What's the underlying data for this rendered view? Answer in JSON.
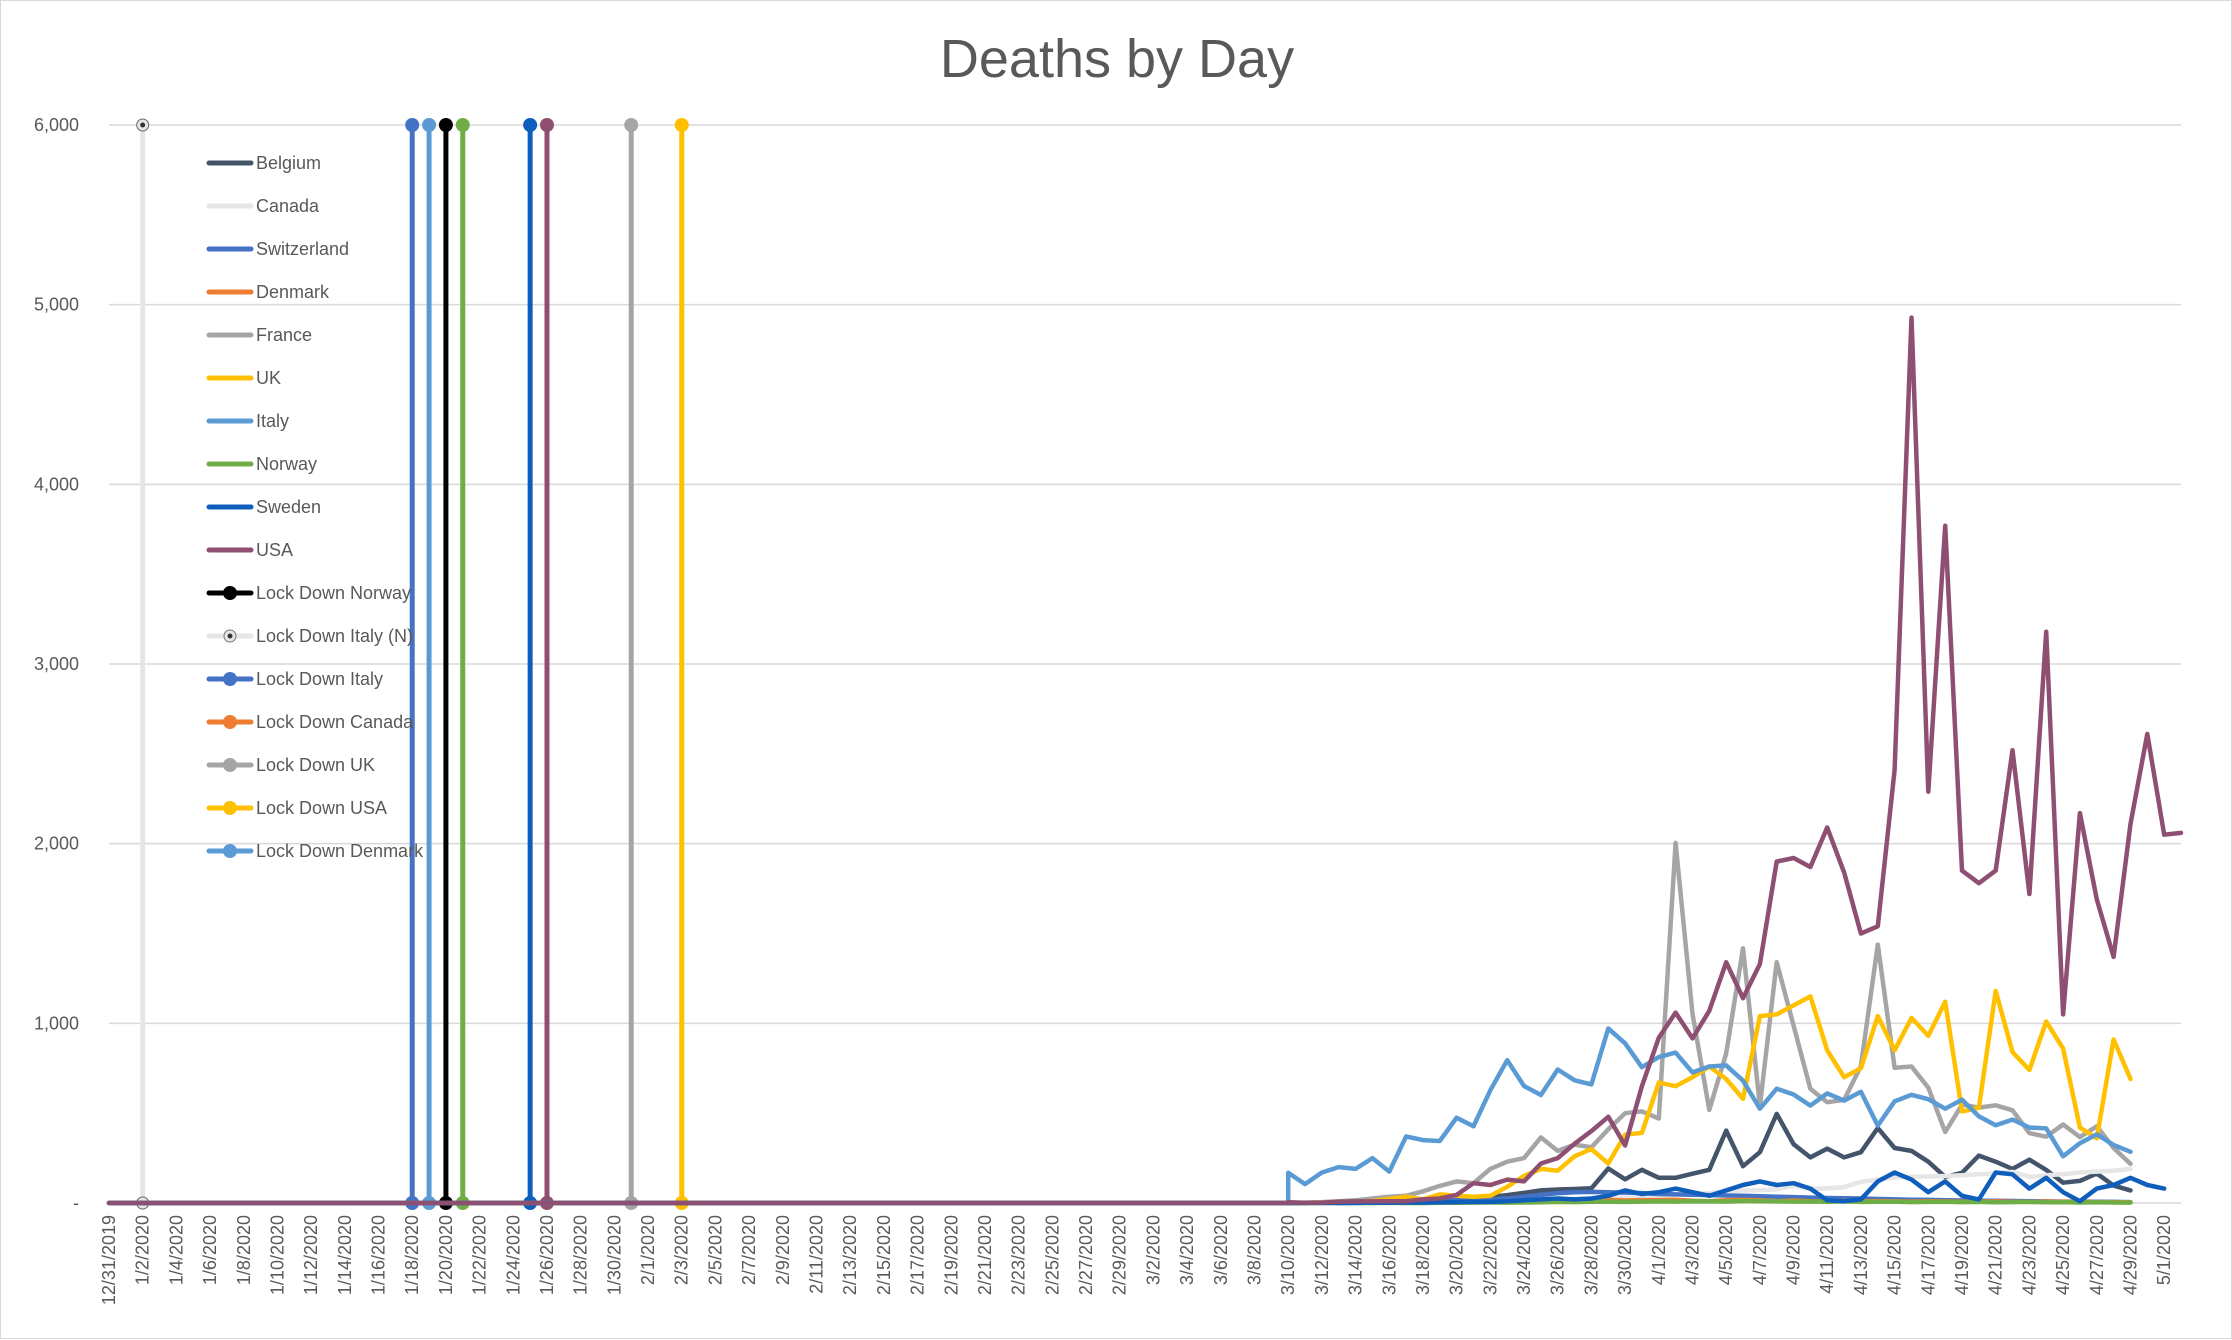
{
  "chart_data": {
    "type": "line",
    "title": "Deaths by Day",
    "xlabel": "",
    "ylabel": "",
    "ylim": [
      0,
      6000
    ],
    "y_ticks": [
      0,
      1000,
      2000,
      3000,
      4000,
      5000,
      6000
    ],
    "y_tick_labels": [
      "-",
      "1,000",
      "2,000",
      "3,000",
      "4,000",
      "5,000",
      "6,000"
    ],
    "x_start": "2019-12-31",
    "x_end": "2020-05-02",
    "x_tick_labels": [
      "12/31/2019",
      "1/2/2020",
      "1/4/2020",
      "1/6/2020",
      "1/8/2020",
      "1/10/2020",
      "1/12/2020",
      "1/14/2020",
      "1/16/2020",
      "1/18/2020",
      "1/20/2020",
      "1/22/2020",
      "1/24/2020",
      "1/26/2020",
      "1/28/2020",
      "1/30/2020",
      "2/1/2020",
      "2/3/2020",
      "2/5/2020",
      "2/7/2020",
      "2/9/2020",
      "2/11/2020",
      "2/13/2020",
      "2/15/2020",
      "2/17/2020",
      "2/19/2020",
      "2/21/2020",
      "2/23/2020",
      "2/25/2020",
      "2/27/2020",
      "2/29/2020",
      "3/2/2020",
      "3/4/2020",
      "3/6/2020",
      "3/8/2020",
      "3/10/2020",
      "3/12/2020",
      "3/14/2020",
      "3/16/2020",
      "3/18/2020",
      "3/20/2020",
      "3/22/2020",
      "3/24/2020",
      "3/26/2020",
      "3/28/2020",
      "3/30/2020",
      "4/1/2020",
      "4/3/2020",
      "4/5/2020",
      "4/7/2020",
      "4/9/2020",
      "4/11/2020",
      "4/13/2020",
      "4/15/2020",
      "4/17/2020",
      "4/19/2020",
      "4/21/2020",
      "4/23/2020",
      "4/25/2020",
      "4/27/2020",
      "4/29/2020",
      "5/1/2020"
    ],
    "gridlines": true,
    "legend_position": "upper-left",
    "series": [
      {
        "name": "Belgium",
        "color": "#44546a",
        "start": "2020-03-10",
        "values": [
          0,
          0,
          0,
          2,
          1,
          5,
          4,
          6,
          5,
          10,
          14,
          21,
          34,
          44,
          56,
          70,
          75,
          78,
          82,
          192,
          132,
          185,
          140,
          140,
          163,
          185,
          403,
          205,
          283,
          496,
          327,
          254,
          303,
          254,
          283,
          417,
          306,
          290,
          230,
          145,
          168,
          264,
          230,
          190,
          241,
          184,
          113,
          123,
          164,
          97,
          70
        ]
      },
      {
        "name": "Canada",
        "color": "#e7e6e6",
        "start": "2020-03-10",
        "values": [
          0,
          0,
          0,
          0,
          0,
          1,
          1,
          1,
          2,
          3,
          4,
          5,
          5,
          8,
          10,
          12,
          18,
          23,
          23,
          29,
          30,
          28,
          40,
          47,
          52,
          55,
          65,
          70,
          71,
          77,
          95,
          78,
          82,
          88,
          118,
          130,
          142,
          145,
          148,
          150,
          155,
          160,
          165,
          173,
          145,
          155,
          160,
          170,
          175,
          180,
          190
        ]
      },
      {
        "name": "Switzerland",
        "color": "#4472c4",
        "start": "2020-03-10",
        "values": [
          1,
          1,
          2,
          3,
          4,
          5,
          6,
          7,
          10,
          12,
          15,
          17,
          20,
          25,
          35,
          45,
          55,
          60,
          62,
          60,
          58,
          55,
          50,
          48,
          46,
          44,
          42,
          40,
          38,
          35,
          33,
          30,
          28,
          26,
          25,
          22,
          20,
          18,
          17,
          15,
          14,
          13,
          12,
          11,
          10,
          9,
          8,
          8,
          7,
          6,
          5
        ]
      },
      {
        "name": "Denmark",
        "color": "#ed7d31",
        "start": "2020-03-10",
        "values": [
          0,
          0,
          1,
          1,
          1,
          2,
          1,
          2,
          2,
          3,
          4,
          3,
          6,
          7,
          8,
          13,
          10,
          12,
          15,
          17,
          14,
          16,
          16,
          18,
          13,
          10,
          15,
          17,
          15,
          10,
          14,
          10,
          8,
          12,
          9,
          11,
          10,
          8,
          10,
          9,
          7,
          8,
          9,
          7,
          6,
          8,
          7,
          6,
          5,
          4,
          4
        ]
      },
      {
        "name": "France",
        "color": "#a5a5a5",
        "start": "2020-03-10",
        "values": [
          0,
          2,
          5,
          10,
          15,
          25,
          35,
          40,
          65,
          95,
          120,
          110,
          190,
          230,
          250,
          365,
          290,
          325,
          310,
          410,
          500,
          510,
          470,
          2004,
          1053,
          518,
          833,
          1417,
          541,
          1341,
          987,
          635,
          561,
          574,
          762,
          1438,
          753,
          760,
          642,
          395,
          547,
          531,
          544,
          516,
          389,
          369,
          437,
          367,
          427,
          306,
          218
        ]
      },
      {
        "name": "UK",
        "color": "#ffc000",
        "start": "2020-03-10",
        "values": [
          0,
          1,
          3,
          2,
          6,
          11,
          22,
          35,
          20,
          48,
          40,
          35,
          40,
          90,
          150,
          190,
          180,
          260,
          300,
          220,
          380,
          390,
          670,
          650,
          700,
          760,
          690,
          580,
          1040,
          1050,
          1100,
          1150,
          850,
          700,
          750,
          1040,
          850,
          1030,
          930,
          1120,
          510,
          530,
          1180,
          840,
          740,
          1010,
          860,
          420,
          360,
          910,
          690
        ]
      },
      {
        "name": "Italy",
        "color": "#5b9bd5",
        "start": "2020-03-10",
        "values": [
          168,
          105,
          170,
          200,
          190,
          250,
          175,
          370,
          350,
          345,
          475,
          427,
          627,
          795,
          651,
          601,
          743,
          683,
          660,
          971,
          889,
          756,
          812,
          837,
          727,
          760,
          766,
          681,
          525,
          636,
          604,
          542,
          610,
          570,
          619,
          431,
          566,
          602,
          578,
          525,
          575,
          482,
          433,
          464,
          420,
          415,
          260,
          333,
          382,
          323,
          285
        ]
      },
      {
        "name": "Norway",
        "color": "#70ad47",
        "start": "2020-03-10",
        "values": [
          0,
          0,
          0,
          0,
          1,
          0,
          1,
          0,
          0,
          1,
          1,
          2,
          3,
          2,
          3,
          4,
          6,
          5,
          7,
          7,
          6,
          8,
          9,
          8,
          10,
          9,
          8,
          11,
          10,
          9,
          8,
          8,
          7,
          9,
          6,
          7,
          8,
          5,
          6,
          7,
          5,
          6,
          4,
          5,
          6,
          4,
          5,
          3,
          4,
          3,
          2
        ]
      },
      {
        "name": "Sweden",
        "color": "#0f5ebc",
        "start": "2020-03-10",
        "values": [
          0,
          0,
          1,
          0,
          0,
          2,
          1,
          3,
          2,
          4,
          5,
          7,
          6,
          10,
          15,
          20,
          25,
          20,
          25,
          40,
          70,
          50,
          60,
          80,
          60,
          40,
          70,
          100,
          120,
          100,
          110,
          80,
          15,
          10,
          20,
          120,
          170,
          130,
          60,
          120,
          40,
          20,
          170,
          160,
          80,
          140,
          60,
          10,
          80,
          100,
          140,
          100,
          80
        ]
      },
      {
        "name": "USA",
        "color": "#8e4f73",
        "start": "2020-03-10",
        "values": [
          4,
          1,
          2,
          7,
          9,
          9,
          10,
          10,
          20,
          25,
          45,
          110,
          100,
          130,
          120,
          220,
          250,
          330,
          400,
          480,
          320,
          650,
          920,
          1060,
          916,
          1070,
          1340,
          1140,
          1330,
          1900,
          1920,
          1870,
          2090,
          1840,
          1500,
          1540,
          2410,
          4928,
          2290,
          3770,
          1850,
          1780,
          1850,
          2520,
          1720,
          3180,
          1050,
          2170,
          1690,
          1370,
          2110,
          2611,
          2050,
          2060
        ]
      }
    ],
    "lockdowns": [
      {
        "name": "Lock Down Norway",
        "date": "2020-01-20",
        "color": "#000000"
      },
      {
        "name": "Lock Down Italy (N)",
        "date": "2020-01-02",
        "color": "#e7e6e6"
      },
      {
        "name": "Lock Down Italy",
        "date": "2020-01-18",
        "color": "#4472c4"
      },
      {
        "name": "Lock Down Canada",
        "date": null,
        "color": "#ed7d31"
      },
      {
        "name": "Lock Down UK",
        "date": "2020-01-31",
        "color": "#a5a5a5"
      },
      {
        "name": "Lock Down USA",
        "date": "2020-02-03",
        "color": "#ffc000"
      },
      {
        "name": "Lock Down Denmark",
        "date": "2020-01-19",
        "color": "#5b9bd5"
      }
    ],
    "unlabeled_vertical_lines": [
      {
        "date": "2020-01-21",
        "color": "#70ad47"
      },
      {
        "date": "2020-01-25",
        "color": "#0f5ebc"
      },
      {
        "date": "2020-01-26",
        "color": "#8e4f73"
      }
    ],
    "lockdown_level": 6000
  }
}
